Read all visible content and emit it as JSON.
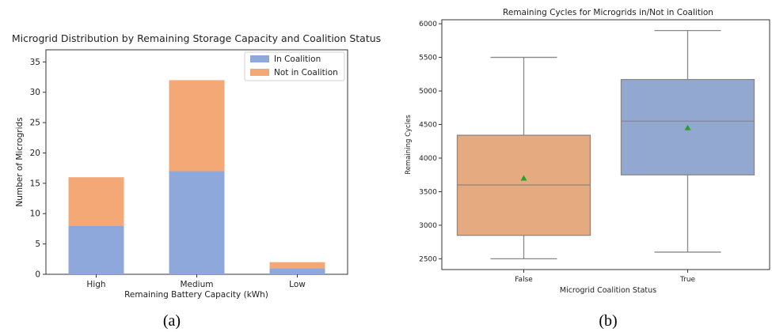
{
  "chart_data": [
    {
      "type": "bar",
      "stacked": true,
      "title": "Microgrid Distribution by Remaining Storage Capacity and Coalition Status",
      "xlabel": "Remaining Battery Capacity (kWh)",
      "ylabel": "Number of Microgrids",
      "categories": [
        "High",
        "Medium",
        "Low"
      ],
      "series": [
        {
          "name": "In Coalition",
          "values": [
            8,
            17,
            1
          ],
          "color": "#8fa8dc"
        },
        {
          "name": "Not in Coalition",
          "values": [
            8,
            15,
            1
          ],
          "color": "#f3a876"
        }
      ],
      "ylim": [
        0,
        37
      ],
      "yticks": [
        0,
        5,
        10,
        15,
        20,
        25,
        30,
        35
      ],
      "grid": false,
      "legend": "top-right",
      "caption": "(a)"
    },
    {
      "type": "box",
      "title": "Remaining Cycles for Microgrids in/Not in Coalition",
      "xlabel": "Microgrid Coalition Status",
      "ylabel": "Remaining Cycles",
      "categories": [
        "False",
        "True"
      ],
      "boxes": [
        {
          "category": "False",
          "min": 2500,
          "q1": 2850,
          "median": 3600,
          "q3": 4340,
          "max": 5500,
          "mean": 3700,
          "color": "#e6aa80"
        },
        {
          "category": "True",
          "min": 2600,
          "q1": 3750,
          "median": 4550,
          "q3": 5170,
          "max": 5900,
          "mean": 4450,
          "color": "#92a8d1"
        }
      ],
      "ylim": [
        2340,
        6060
      ],
      "yticks": [
        2500,
        3000,
        3500,
        4000,
        4500,
        5000,
        5500,
        6000
      ],
      "mean_marker_color": "#2ca02c",
      "grid": false,
      "caption": "(b)"
    }
  ]
}
